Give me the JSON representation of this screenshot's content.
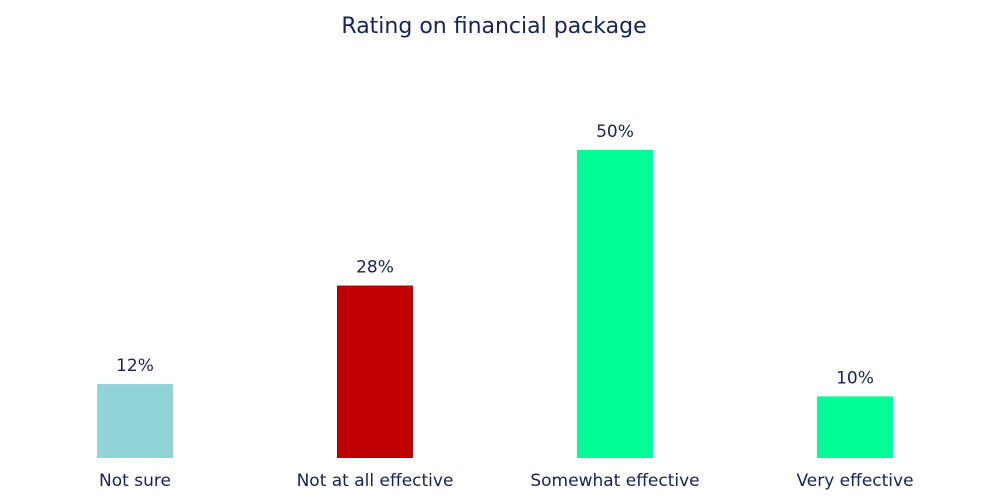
{
  "chart_data": {
    "type": "bar",
    "title": "Rating on financial package",
    "categories": [
      "Not sure",
      "Not at all effective",
      "Somewhat effective",
      "Very effective"
    ],
    "values": [
      12,
      28,
      50,
      10
    ],
    "value_labels": [
      "12%",
      "28%",
      "50%",
      "10%"
    ],
    "colors": [
      "#8fd3d8",
      "#c00000",
      "#00fe96",
      "#00fe96"
    ]
  }
}
